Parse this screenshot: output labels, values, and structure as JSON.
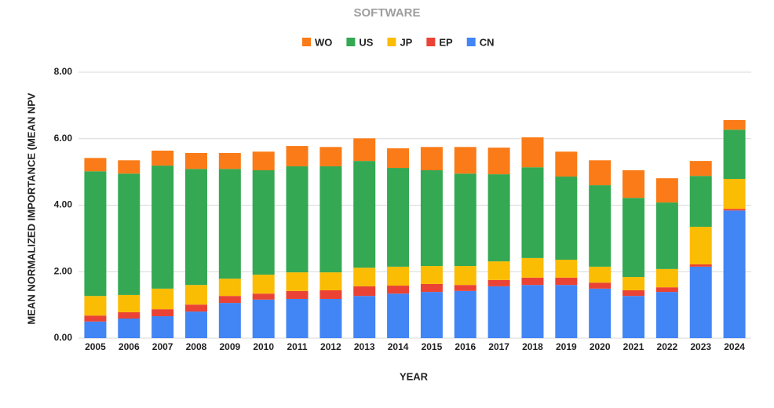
{
  "chart_data": {
    "type": "stacked-bar",
    "title": "SOFTWARE",
    "x_label": "YEAR",
    "y_label": "MEAN NORMALIZED IMPORTANCE (MEAN NPV",
    "categories": [
      "2005",
      "2006",
      "2007",
      "2008",
      "2009",
      "2010",
      "2011",
      "2012",
      "2013",
      "2014",
      "2015",
      "2016",
      "2017",
      "2018",
      "2019",
      "2020",
      "2021",
      "2022",
      "2023",
      "2024"
    ],
    "series": [
      {
        "name": "WO",
        "color": "#fa7b17",
        "values": [
          0.4,
          0.4,
          0.45,
          0.48,
          0.48,
          0.56,
          0.61,
          0.58,
          0.68,
          0.59,
          0.7,
          0.8,
          0.8,
          0.9,
          0.75,
          0.75,
          0.83,
          0.73,
          0.45,
          0.29
        ]
      },
      {
        "name": "US",
        "color": "#34a853",
        "values": [
          3.75,
          3.65,
          3.7,
          3.49,
          3.3,
          3.14,
          3.19,
          3.19,
          3.21,
          2.97,
          2.88,
          2.78,
          2.62,
          2.73,
          2.5,
          2.45,
          2.38,
          2.0,
          1.53,
          1.48
        ]
      },
      {
        "name": "JP",
        "color": "#fbbc04",
        "values": [
          0.59,
          0.52,
          0.62,
          0.59,
          0.52,
          0.57,
          0.56,
          0.54,
          0.56,
          0.57,
          0.54,
          0.57,
          0.56,
          0.59,
          0.54,
          0.48,
          0.4,
          0.55,
          1.13,
          0.9
        ]
      },
      {
        "name": "EP",
        "color": "#ea4335",
        "values": [
          0.18,
          0.19,
          0.21,
          0.21,
          0.21,
          0.18,
          0.24,
          0.26,
          0.29,
          0.24,
          0.24,
          0.18,
          0.19,
          0.22,
          0.22,
          0.18,
          0.17,
          0.14,
          0.07,
          0.05
        ]
      },
      {
        "name": "CN",
        "color": "#4285f4",
        "values": [
          0.5,
          0.59,
          0.66,
          0.8,
          1.06,
          1.16,
          1.18,
          1.18,
          1.27,
          1.34,
          1.39,
          1.42,
          1.56,
          1.6,
          1.6,
          1.49,
          1.27,
          1.39,
          2.15,
          3.84
        ]
      }
    ],
    "ylim": [
      0,
      8
    ],
    "yticks": [
      {
        "value": 0,
        "label": "0.00"
      },
      {
        "value": 2,
        "label": "2.00"
      },
      {
        "value": 4,
        "label": "4.00"
      },
      {
        "value": 6,
        "label": "6.00"
      },
      {
        "value": 8,
        "label": "8.00"
      }
    ],
    "grid": true,
    "legend": "top"
  }
}
